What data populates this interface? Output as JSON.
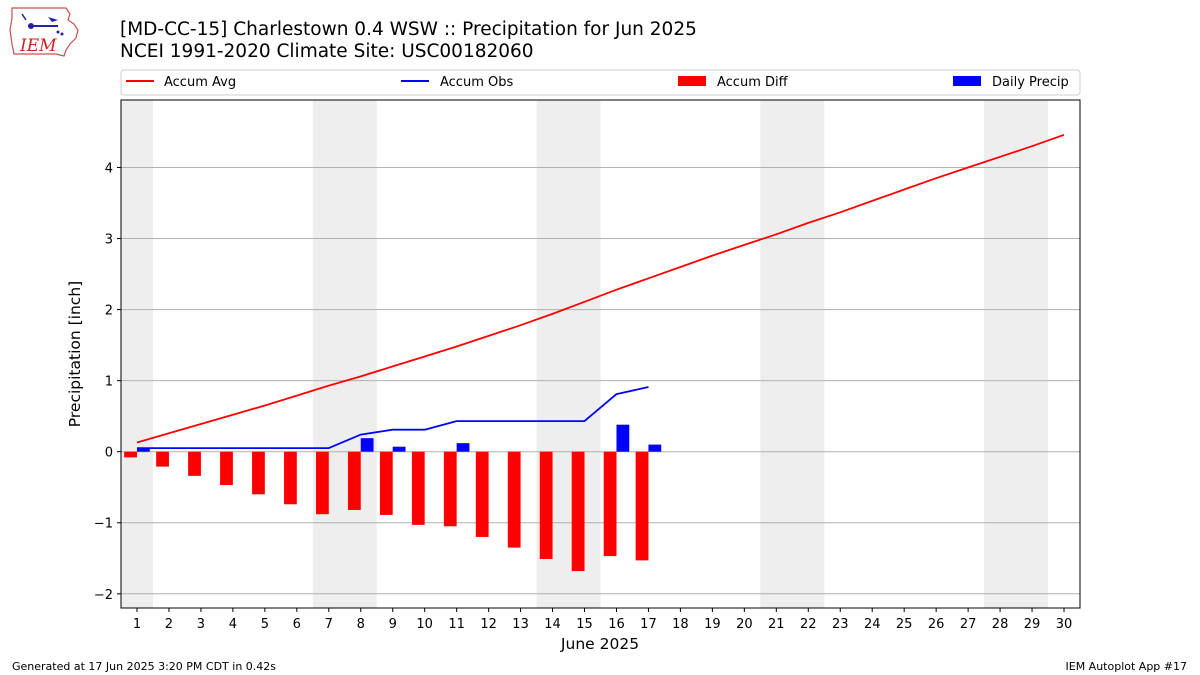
{
  "title_line1": "[MD-CC-15] Charlestown 0.4 WSW :: Precipitation for Jun 2025",
  "title_line2": "NCEI 1991-2020 Climate Site: USC00182060",
  "logo_text": "IEM",
  "footer_left": "Generated at 17 Jun 2025 3:20 PM CDT in 0.42s",
  "footer_right": "IEM Autoplot App #17",
  "colors": {
    "accum_avg": "#ff0000",
    "accum_obs": "#0000ff",
    "accum_diff": "#ff0000",
    "daily_precip": "#0000ff",
    "weekend_shade": "#eeeeee",
    "grid": "#b0b0b0"
  },
  "chart_data": {
    "type": "bar",
    "xlabel": "June 2025",
    "ylabel": "Precipitation [inch]",
    "xlim": [
      0.5,
      30.5
    ],
    "ylim": [
      -2.2,
      4.95
    ],
    "x_ticks": [
      1,
      2,
      3,
      4,
      5,
      6,
      7,
      8,
      9,
      10,
      11,
      12,
      13,
      14,
      15,
      16,
      17,
      18,
      19,
      20,
      21,
      22,
      23,
      24,
      25,
      26,
      27,
      28,
      29,
      30
    ],
    "y_ticks": [
      -2,
      -1,
      0,
      1,
      2,
      3,
      4
    ],
    "y_tick_labels": [
      "−2",
      "−1",
      "0",
      "1",
      "2",
      "3",
      "4"
    ],
    "grid": "y-major",
    "legend_placement": "top, above plot",
    "shaded_days": [
      [
        0.5,
        1.5
      ],
      [
        6.5,
        8.5
      ],
      [
        13.5,
        15.5
      ],
      [
        20.5,
        22.5
      ],
      [
        27.5,
        29.5
      ]
    ],
    "series": [
      {
        "name": "Accum Avg",
        "kind": "line",
        "x": [
          1,
          2,
          3,
          4,
          5,
          6,
          7,
          8,
          9,
          10,
          11,
          12,
          13,
          14,
          15,
          16,
          17,
          18,
          19,
          20,
          21,
          22,
          23,
          24,
          25,
          26,
          27,
          28,
          29,
          30
        ],
        "values": [
          0.13,
          0.26,
          0.39,
          0.52,
          0.65,
          0.79,
          0.93,
          1.06,
          1.2,
          1.34,
          1.48,
          1.63,
          1.78,
          1.94,
          2.11,
          2.28,
          2.44,
          2.6,
          2.76,
          2.91,
          3.06,
          3.22,
          3.37,
          3.53,
          3.69,
          3.85,
          4.0,
          4.15,
          4.3,
          4.46
        ]
      },
      {
        "name": "Accum Obs",
        "kind": "line",
        "x": [
          1,
          2,
          3,
          4,
          5,
          6,
          7,
          8,
          9,
          10,
          11,
          12,
          13,
          14,
          15,
          16,
          17
        ],
        "values": [
          0.05,
          0.05,
          0.05,
          0.05,
          0.05,
          0.05,
          0.05,
          0.24,
          0.31,
          0.31,
          0.43,
          0.43,
          0.43,
          0.43,
          0.43,
          0.81,
          0.91
        ]
      },
      {
        "name": "Accum Diff",
        "kind": "bar",
        "x": [
          1,
          2,
          3,
          4,
          5,
          6,
          7,
          8,
          9,
          10,
          11,
          12,
          13,
          14,
          15,
          16,
          17
        ],
        "values": [
          -0.08,
          -0.21,
          -0.34,
          -0.47,
          -0.6,
          -0.74,
          -0.88,
          -0.82,
          -0.89,
          -1.03,
          -1.05,
          -1.2,
          -1.35,
          -1.51,
          -1.68,
          -1.47,
          -1.53
        ]
      },
      {
        "name": "Daily Precip",
        "kind": "bar",
        "x": [
          1,
          2,
          3,
          4,
          5,
          6,
          7,
          8,
          9,
          10,
          11,
          12,
          13,
          14,
          15,
          16,
          17
        ],
        "values": [
          0.05,
          0,
          0,
          0,
          0,
          0,
          0,
          0.19,
          0.07,
          0,
          0.12,
          0,
          0,
          0,
          0,
          0.38,
          0.1
        ]
      }
    ]
  }
}
